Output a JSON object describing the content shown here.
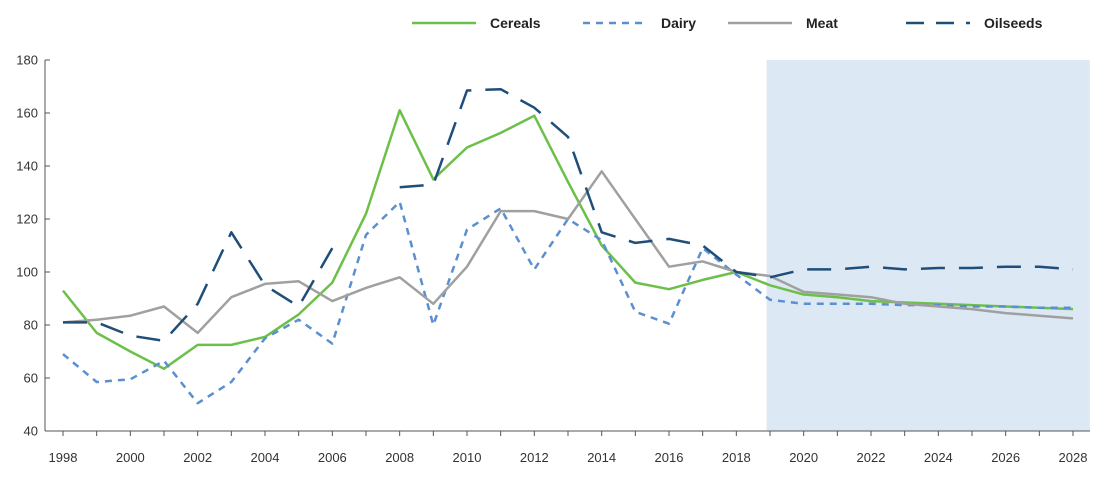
{
  "chart_data": {
    "type": "line",
    "x": [
      1998,
      1999,
      2000,
      2001,
      2002,
      2003,
      2004,
      2005,
      2006,
      2007,
      2008,
      2009,
      2010,
      2011,
      2012,
      2013,
      2014,
      2015,
      2016,
      2017,
      2018,
      2019,
      2020,
      2021,
      2022,
      2023,
      2024,
      2025,
      2026,
      2027,
      2028
    ],
    "x_ticks": [
      "1998",
      "2000",
      "2002",
      "2004",
      "2006",
      "2008",
      "2010",
      "2012",
      "2014",
      "2016",
      "2018",
      "2020",
      "2022",
      "2024",
      "2026",
      "2028"
    ],
    "y_ticks": [
      "40",
      "60",
      "80",
      "100",
      "120",
      "140",
      "160",
      "180"
    ],
    "ylim": [
      40,
      180
    ],
    "xlim": [
      1998,
      2028
    ],
    "grid": false,
    "legend_position": "top",
    "projection_shading": {
      "from": 2018.9,
      "to": 2028.5,
      "color": "#dce8f4"
    },
    "series": [
      {
        "name": "Cereals",
        "color": "#6cc04a",
        "dash": "solid",
        "values": [
          93,
          77,
          70,
          63.5,
          72.5,
          72.5,
          75.5,
          84,
          96,
          122,
          161,
          135,
          147,
          152.5,
          159,
          134,
          110,
          96,
          93.5,
          97,
          100,
          95,
          91.5,
          90.5,
          89,
          88.5,
          88,
          87.5,
          87,
          86.5,
          86
        ]
      },
      {
        "name": "Dairy",
        "color": "#5b8fd0",
        "dash": "short",
        "values": [
          69,
          58.5,
          59.5,
          66.5,
          50.5,
          58.5,
          75,
          82,
          73,
          114,
          126.5,
          80,
          116,
          124,
          101,
          120,
          112,
          85,
          80.5,
          109,
          99,
          89.5,
          88,
          88,
          88,
          87.5,
          87.5,
          87,
          87,
          86.5,
          86.5
        ]
      },
      {
        "name": "Meat",
        "color": "#a0a0a0",
        "dash": "solid",
        "values": [
          81,
          82,
          83.5,
          87,
          77,
          90.5,
          95.5,
          96.5,
          89,
          94,
          98,
          88,
          102,
          123,
          123,
          120,
          138,
          120,
          102,
          104,
          100,
          98.5,
          92.5,
          91.5,
          90.5,
          88,
          87,
          86,
          84.5,
          83.5,
          82.5
        ]
      },
      {
        "name": "Oilseeds",
        "color": "#1f4e79",
        "dash": "long",
        "values": [
          81,
          81,
          76,
          74,
          88,
          115,
          95,
          87,
          109,
          null,
          132,
          133,
          168.5,
          169,
          162,
          151,
          115,
          111,
          112.5,
          110,
          100,
          98,
          101,
          101,
          102,
          101,
          101.5,
          101.5,
          102,
          102,
          101
        ]
      }
    ]
  }
}
